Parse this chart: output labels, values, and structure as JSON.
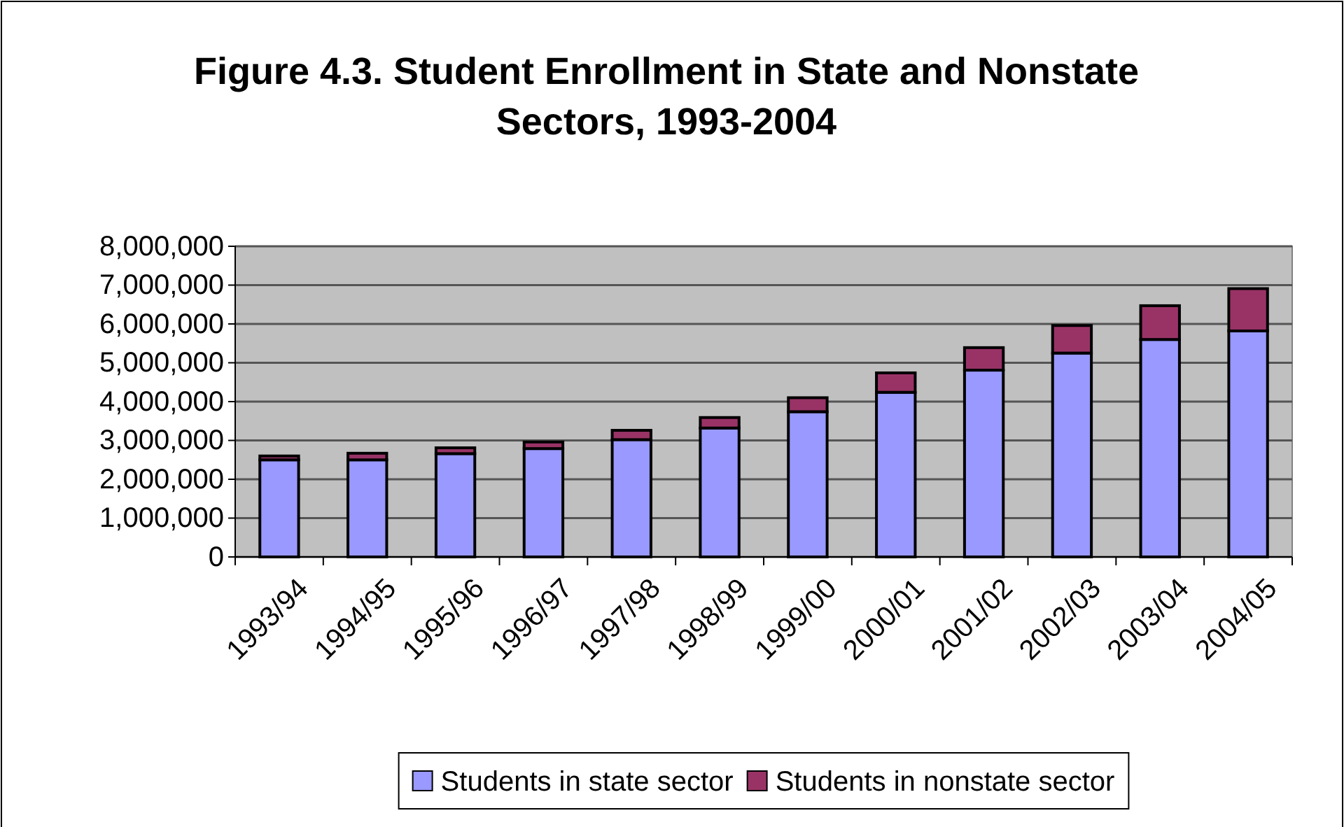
{
  "chart_data": {
    "type": "bar",
    "title": "Figure 4.3. Student Enrollment in State and Nonstate Sectors, 1993-2004",
    "stacked": true,
    "categories": [
      "1993/94",
      "1994/95",
      "1995/96",
      "1996/97",
      "1997/98",
      "1998/99",
      "1999/00",
      "2000/01",
      "2001/02",
      "2002/03",
      "2003/04",
      "2004/05"
    ],
    "series": [
      {
        "name": "Students in state sector",
        "color": "#9999ff",
        "values": [
          2500000,
          2500000,
          2660000,
          2790000,
          3020000,
          3320000,
          3740000,
          4240000,
          4810000,
          5250000,
          5600000,
          5820000
        ]
      },
      {
        "name": "Students in nonstate sector",
        "color": "#993366",
        "values": [
          100000,
          170000,
          150000,
          170000,
          240000,
          270000,
          360000,
          500000,
          580000,
          710000,
          870000,
          1090000
        ]
      }
    ],
    "ylim": [
      0,
      8000000
    ],
    "yticks": [
      {
        "value": 0,
        "label": "0"
      },
      {
        "value": 1000000,
        "label": "1,000,000"
      },
      {
        "value": 2000000,
        "label": "2,000,000"
      },
      {
        "value": 3000000,
        "label": "3,000,000"
      },
      {
        "value": 4000000,
        "label": "4,000,000"
      },
      {
        "value": 5000000,
        "label": "5,000,000"
      },
      {
        "value": 6000000,
        "label": "6,000,000"
      },
      {
        "value": 7000000,
        "label": "7,000,000"
      },
      {
        "value": 8000000,
        "label": "8,000,000"
      }
    ],
    "grid": "y",
    "legend": "bottom"
  }
}
